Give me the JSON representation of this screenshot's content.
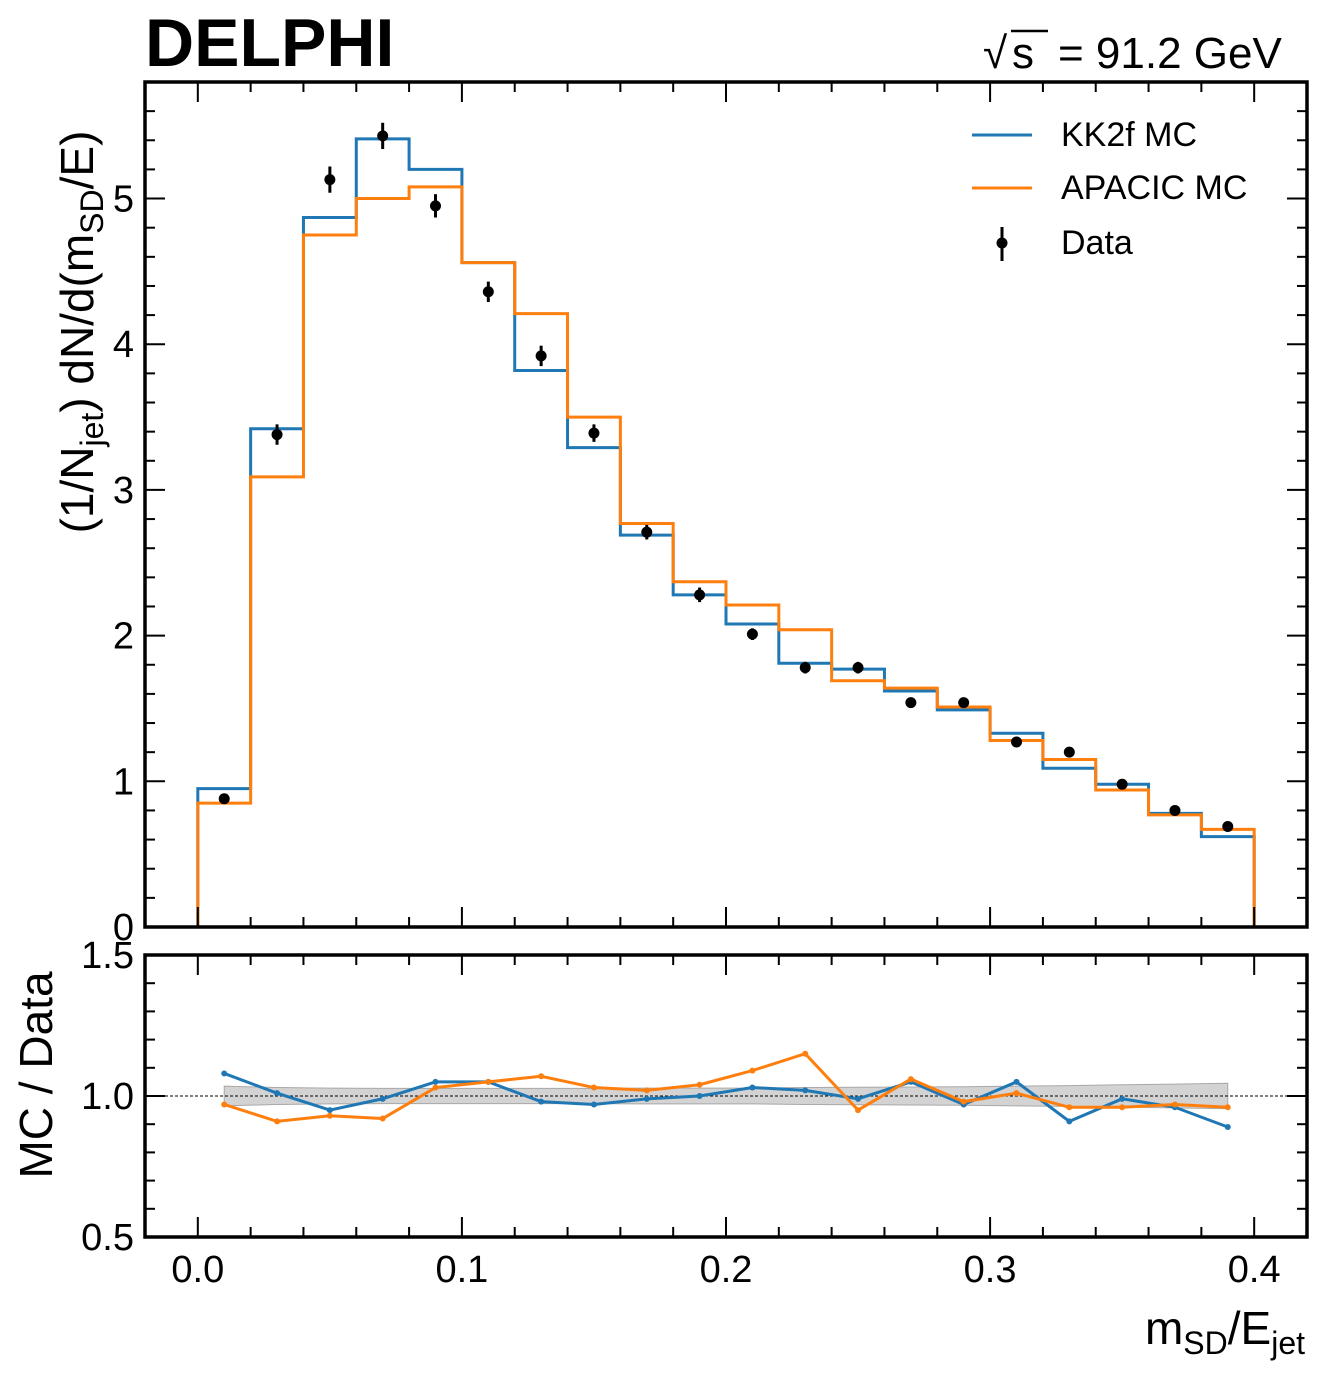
{
  "header": {
    "experiment": "DELPHI",
    "sqrt_symbol": "√",
    "sqrt_var": "s",
    "energy": "= 91.2 GeV"
  },
  "colors": {
    "kk2f": "#1f77b4",
    "apacic": "#ff7f0e",
    "data": "#000000",
    "band": "#c8c8c8"
  },
  "labels": {
    "ylabel_main_pre": "(1/N",
    "ylabel_main_sub1": "jet",
    "ylabel_main_mid": ") dN/d(m",
    "ylabel_main_sub2": "SD",
    "ylabel_main_post": "/E)",
    "ylabel_ratio": "MC / Data",
    "xlabel_main": "m",
    "xlabel_sub1": "SD",
    "xlabel_mid": "/E",
    "xlabel_sub2": "jet"
  },
  "chart_data": [
    {
      "type": "line",
      "subtype": "step-histogram",
      "title": "DELPHI  √s = 91.2 GeV",
      "xlabel": "m_SD/E_jet",
      "ylabel": "(1/N_jet) dN/d(m_SD/E)",
      "xlim": [
        -0.02,
        0.42
      ],
      "ylim": [
        0,
        5.8
      ],
      "bin_edges": [
        0.0,
        0.02,
        0.04,
        0.06,
        0.08,
        0.1,
        0.12,
        0.14,
        0.16,
        0.18,
        0.2,
        0.22,
        0.24,
        0.26,
        0.28,
        0.3,
        0.32,
        0.34,
        0.36,
        0.38,
        0.4
      ],
      "yticks": [
        0,
        1,
        2,
        3,
        4,
        5
      ],
      "ytick_labels": [
        "0",
        "1",
        "2",
        "3",
        "4",
        "5"
      ],
      "legend_position": "top-right",
      "series": [
        {
          "name": "KK2f MC",
          "style": "step",
          "values": [
            0.95,
            3.42,
            4.87,
            5.41,
            5.2,
            4.56,
            3.82,
            3.29,
            2.69,
            2.28,
            2.08,
            1.81,
            1.77,
            1.62,
            1.49,
            1.33,
            1.09,
            0.98,
            0.78,
            0.62
          ]
        },
        {
          "name": "APACIC MC",
          "style": "step",
          "values": [
            0.85,
            3.09,
            4.75,
            5.0,
            5.08,
            4.56,
            4.21,
            3.5,
            2.77,
            2.37,
            2.21,
            2.04,
            1.69,
            1.64,
            1.51,
            1.28,
            1.15,
            0.94,
            0.77,
            0.67
          ]
        },
        {
          "name": "Data",
          "style": "errorbar",
          "x": [
            0.01,
            0.03,
            0.05,
            0.07,
            0.09,
            0.11,
            0.13,
            0.15,
            0.17,
            0.19,
            0.21,
            0.23,
            0.25,
            0.27,
            0.29,
            0.31,
            0.33,
            0.35,
            0.37,
            0.39
          ],
          "values": [
            0.88,
            3.38,
            5.13,
            5.43,
            4.95,
            4.36,
            3.92,
            3.39,
            2.71,
            2.28,
            2.01,
            1.78,
            1.78,
            1.54,
            1.54,
            1.27,
            1.2,
            0.98,
            0.8,
            0.69
          ],
          "errors": [
            0.03,
            0.07,
            0.09,
            0.09,
            0.08,
            0.07,
            0.07,
            0.06,
            0.05,
            0.05,
            0.04,
            0.04,
            0.04,
            0.03,
            0.03,
            0.03,
            0.03,
            0.03,
            0.02,
            0.02
          ]
        }
      ]
    },
    {
      "type": "line",
      "subtype": "ratio",
      "xlabel": "m_SD/E_jet",
      "ylabel": "MC / Data",
      "xlim": [
        -0.02,
        0.42
      ],
      "ylim": [
        0.5,
        1.5
      ],
      "yticks": [
        0.5,
        1.0,
        1.5
      ],
      "ytick_labels": [
        "0.5",
        "1.0",
        "1.5"
      ],
      "xticks": [
        0.0,
        0.1,
        0.2,
        0.3,
        0.4
      ],
      "xtick_labels": [
        "0.0",
        "0.1",
        "0.2",
        "0.3",
        "0.4"
      ],
      "reference_line": 1.0,
      "x": [
        0.01,
        0.03,
        0.05,
        0.07,
        0.09,
        0.11,
        0.13,
        0.15,
        0.17,
        0.19,
        0.21,
        0.23,
        0.25,
        0.27,
        0.29,
        0.31,
        0.33,
        0.35,
        0.37,
        0.39
      ],
      "band_halfwidth": [
        0.035,
        0.03,
        0.028,
        0.027,
        0.027,
        0.027,
        0.027,
        0.027,
        0.028,
        0.028,
        0.028,
        0.03,
        0.031,
        0.032,
        0.033,
        0.035,
        0.037,
        0.04,
        0.042,
        0.045
      ],
      "series": [
        {
          "name": "KK2f MC",
          "values": [
            1.08,
            1.01,
            0.95,
            0.99,
            1.05,
            1.05,
            0.98,
            0.97,
            0.99,
            1.0,
            1.03,
            1.02,
            0.99,
            1.05,
            0.97,
            1.05,
            0.91,
            0.99,
            0.96,
            0.89
          ]
        },
        {
          "name": "APACIC MC",
          "values": [
            0.97,
            0.91,
            0.93,
            0.92,
            1.03,
            1.05,
            1.07,
            1.03,
            1.02,
            1.04,
            1.09,
            1.15,
            0.95,
            1.06,
            0.98,
            1.01,
            0.96,
            0.96,
            0.97,
            0.96
          ]
        }
      ]
    }
  ]
}
